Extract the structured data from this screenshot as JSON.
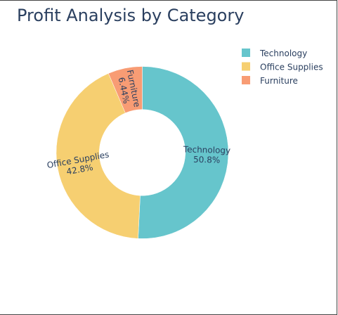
{
  "chart_data": {
    "type": "pie",
    "hole": 0.5,
    "title": "Profit Analysis by Category",
    "categories": [
      "Technology",
      "Office Supplies",
      "Furniture"
    ],
    "values": [
      50.8,
      42.8,
      6.44
    ],
    "labels": [
      {
        "name": "Technology",
        "percent": "50.8%"
      },
      {
        "name": "Office Supplies",
        "percent": "42.8%"
      },
      {
        "name": "Furniture",
        "percent": "6.44%"
      }
    ],
    "colors": [
      "#66c5cc",
      "#f6cf71",
      "#f89c74"
    ],
    "legend": {
      "position": "top-right",
      "entries": [
        "Technology",
        "Office Supplies",
        "Furniture"
      ]
    }
  }
}
